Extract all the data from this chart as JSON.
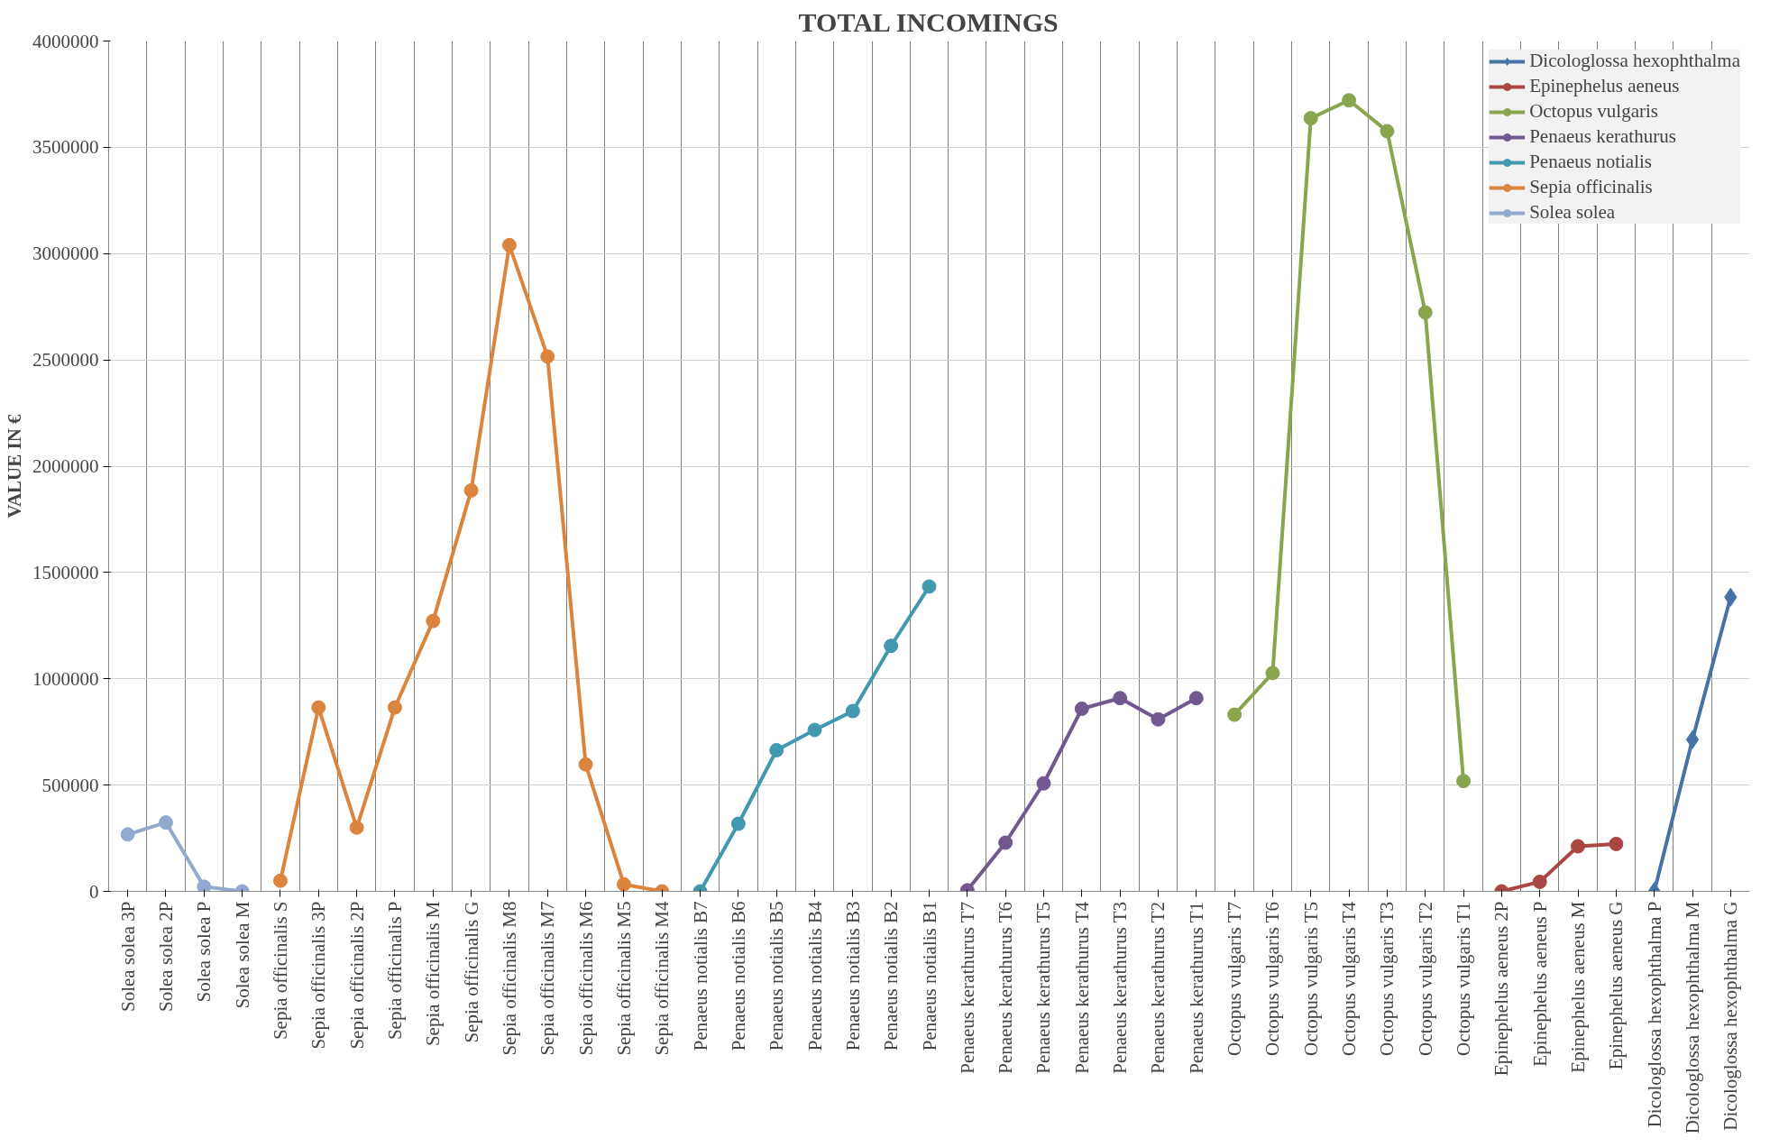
{
  "chart_data": {
    "type": "line",
    "title": "TOTAL INCOMINGS",
    "ylabel": "VALUE IN €",
    "categories": [
      "Solea solea 3P",
      "Solea solea 2P",
      "Solea solea P",
      "Solea solea M",
      "Sepia officinalis S",
      "Sepia officinalis 3P",
      "Sepia officinalis 2P",
      "Sepia officinalis P",
      "Sepia officinalis M",
      "Sepia officinalis G",
      "Sepia officinalis M8",
      "Sepia officinalis M7",
      "Sepia officinalis M6",
      "Sepia officinalis M5",
      "Sepia officinalis M4",
      "Penaeus notialis B7",
      "Penaeus notialis B6",
      "Penaeus notialis B5",
      "Penaeus notialis B4",
      "Penaeus notialis B3",
      "Penaeus notialis B2",
      "Penaeus notialis B1",
      "Penaeus kerathurus T7",
      "Penaeus kerathurus T6",
      "Penaeus kerathurus T5",
      "Penaeus kerathurus T4",
      "Penaeus kerathurus T3",
      "Penaeus kerathurus T2",
      "Penaeus kerathurus T1",
      "Octopus vulgaris T7",
      "Octopus vulgaris T6",
      "Octopus vulgaris T5",
      "Octopus vulgaris T4",
      "Octopus vulgaris T3",
      "Octopus vulgaris T2",
      "Octopus vulgaris T1",
      "Epinephelus aeneus 2P",
      "Epinephelus aeneus P",
      "Epinephelus aeneus M",
      "Epinephelus aeneus G",
      "Dicologlossa hexophthalma P",
      "Dicologlossa hexophthalma M",
      "Dicologlossa hexophthalma G"
    ],
    "series": [
      {
        "name": "Dicologlossa hexophthalma",
        "color": "#4572a7",
        "marker": "diamond",
        "values": [
          null,
          null,
          null,
          null,
          null,
          null,
          null,
          null,
          null,
          null,
          null,
          null,
          null,
          null,
          null,
          null,
          null,
          null,
          null,
          null,
          null,
          null,
          null,
          null,
          null,
          null,
          null,
          null,
          null,
          null,
          null,
          null,
          null,
          null,
          null,
          null,
          null,
          null,
          null,
          null,
          0,
          714000,
          1384000
        ]
      },
      {
        "name": "Epinephelus aeneus",
        "color": "#aa4643",
        "marker": "circle",
        "values": [
          null,
          null,
          null,
          null,
          null,
          null,
          null,
          null,
          null,
          null,
          null,
          null,
          null,
          null,
          null,
          null,
          null,
          null,
          null,
          null,
          null,
          null,
          null,
          null,
          null,
          null,
          null,
          null,
          null,
          null,
          null,
          null,
          null,
          null,
          null,
          null,
          0,
          45000,
          212000,
          223000,
          null,
          null,
          null
        ]
      },
      {
        "name": "Octopus vulgaris",
        "color": "#89a54e",
        "marker": "circle",
        "values": [
          null,
          null,
          null,
          null,
          null,
          null,
          null,
          null,
          null,
          null,
          null,
          null,
          null,
          null,
          null,
          null,
          null,
          null,
          null,
          null,
          null,
          null,
          null,
          null,
          null,
          null,
          null,
          null,
          null,
          831000,
          1027000,
          3637000,
          3721000,
          3576000,
          2723000,
          519000,
          null,
          null,
          null,
          null,
          null,
          null,
          null
        ]
      },
      {
        "name": "Penaeus kerathurus",
        "color": "#71588f",
        "marker": "circle",
        "values": [
          null,
          null,
          null,
          null,
          null,
          null,
          null,
          null,
          null,
          null,
          null,
          null,
          null,
          null,
          null,
          null,
          null,
          null,
          null,
          null,
          null,
          null,
          5000,
          229000,
          508000,
          859000,
          909000,
          809000,
          909000,
          null,
          null,
          null,
          null,
          null,
          null,
          null,
          null,
          null,
          null,
          null,
          null,
          null,
          null
        ]
      },
      {
        "name": "Penaeus notialis",
        "color": "#4198af",
        "marker": "circle",
        "values": [
          null,
          null,
          null,
          null,
          null,
          null,
          null,
          null,
          null,
          null,
          null,
          null,
          null,
          null,
          null,
          0,
          318000,
          664000,
          759000,
          848000,
          1155000,
          1434000,
          null,
          null,
          null,
          null,
          null,
          null,
          null,
          null,
          null,
          null,
          null,
          null,
          null,
          null,
          null,
          null,
          null,
          null,
          null,
          null,
          null
        ]
      },
      {
        "name": "Sepia officinalis",
        "color": "#db843d",
        "marker": "circle",
        "values": [
          null,
          null,
          null,
          null,
          50000,
          865000,
          300000,
          865000,
          1272000,
          1886000,
          3040000,
          2516000,
          597000,
          33000,
          0,
          null,
          null,
          null,
          null,
          null,
          null,
          null,
          null,
          null,
          null,
          null,
          null,
          null,
          null,
          null,
          null,
          null,
          null,
          null,
          null,
          null,
          null,
          null,
          null,
          null,
          null,
          null,
          null
        ]
      },
      {
        "name": "Solea solea",
        "color": "#93a9cf",
        "marker": "circle",
        "values": [
          268000,
          324000,
          22000,
          0,
          null,
          null,
          null,
          null,
          null,
          null,
          null,
          null,
          null,
          null,
          null,
          null,
          null,
          null,
          null,
          null,
          null,
          null,
          null,
          null,
          null,
          null,
          null,
          null,
          null,
          null,
          null,
          null,
          null,
          null,
          null,
          null,
          null,
          null,
          null,
          null,
          null,
          null,
          null
        ]
      }
    ],
    "ylim": [
      0,
      4000000
    ],
    "yticks": [
      0,
      500000,
      1000000,
      1500000,
      2000000,
      2500000,
      3000000,
      3500000,
      4000000
    ],
    "grid": true,
    "legend": "top right",
    "line_style": "solid"
  }
}
